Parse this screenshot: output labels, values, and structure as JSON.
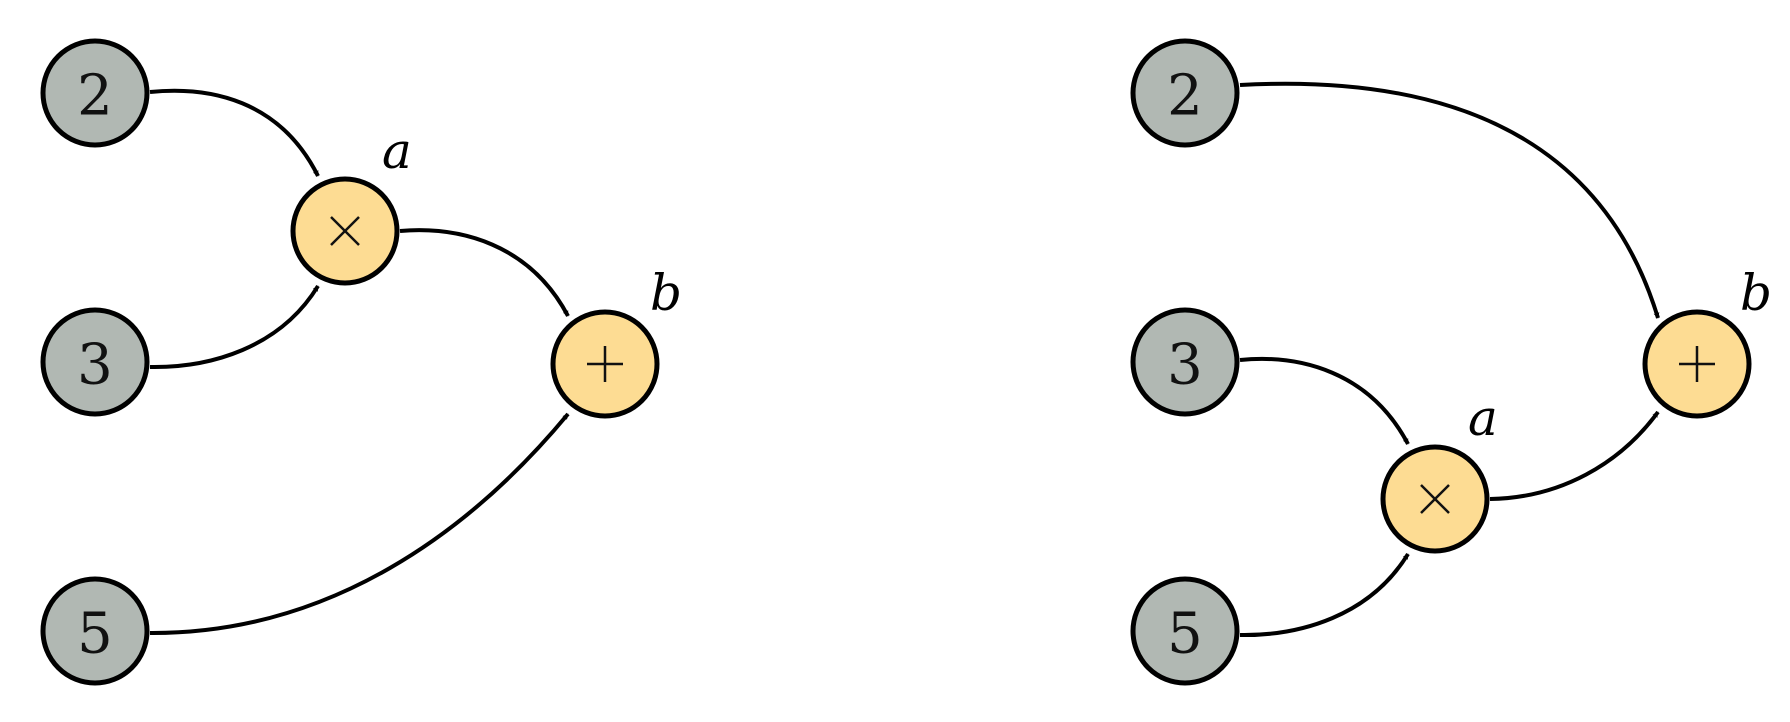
{
  "colors": {
    "input_fill": "#b1b8b3",
    "op_fill": "#fddc93",
    "stroke": "#000000"
  },
  "left_graph": {
    "inputs": [
      {
        "id": "in2",
        "value": "2"
      },
      {
        "id": "in3",
        "value": "3"
      },
      {
        "id": "in5",
        "value": "5"
      }
    ],
    "ops": [
      {
        "id": "mul",
        "symbol": "multiply-icon",
        "label": "a"
      },
      {
        "id": "add",
        "symbol": "plus-icon",
        "label": "b"
      }
    ],
    "edges": [
      {
        "from": "2",
        "to": "a"
      },
      {
        "from": "3",
        "to": "a"
      },
      {
        "from": "a",
        "to": "b"
      },
      {
        "from": "5",
        "to": "b"
      }
    ]
  },
  "right_graph": {
    "inputs": [
      {
        "id": "in2",
        "value": "2"
      },
      {
        "id": "in3",
        "value": "3"
      },
      {
        "id": "in5",
        "value": "5"
      }
    ],
    "ops": [
      {
        "id": "mul",
        "symbol": "multiply-icon",
        "label": "a"
      },
      {
        "id": "add",
        "symbol": "plus-icon",
        "label": "b"
      }
    ],
    "edges": [
      {
        "from": "2",
        "to": "b"
      },
      {
        "from": "3",
        "to": "a"
      },
      {
        "from": "5",
        "to": "a"
      },
      {
        "from": "a",
        "to": "b"
      }
    ]
  }
}
